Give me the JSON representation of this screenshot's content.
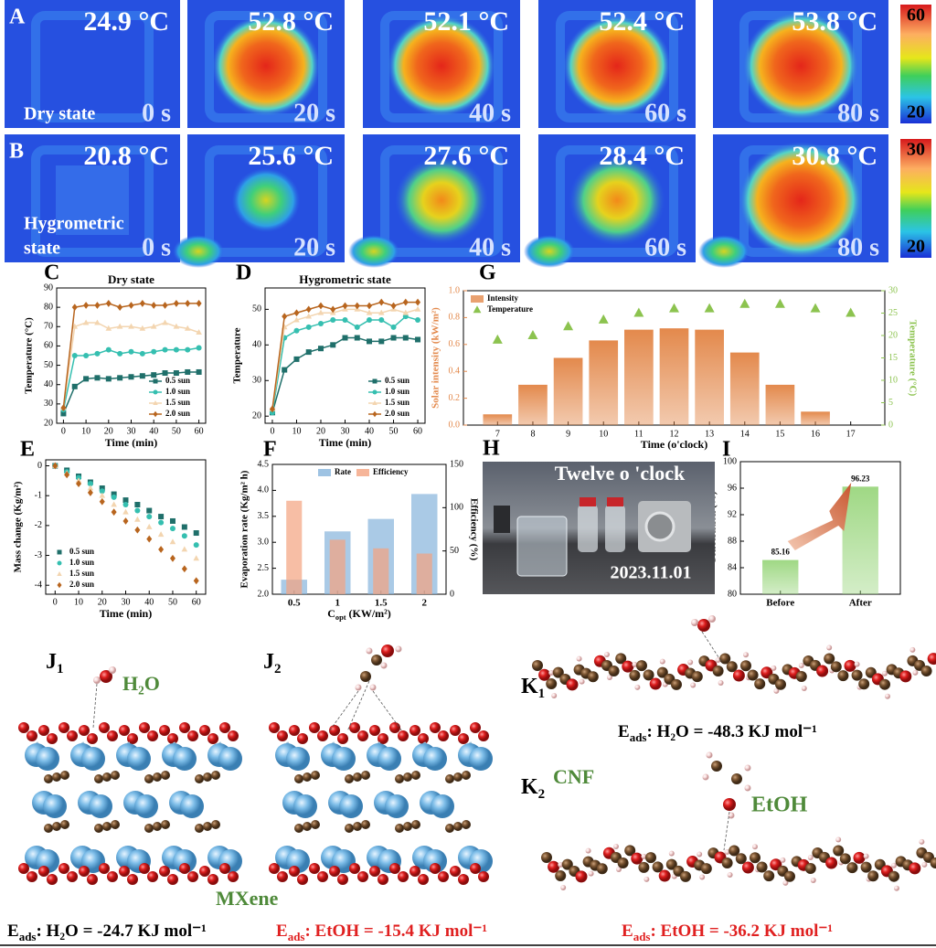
{
  "thermal": {
    "rows": [
      {
        "label": "A",
        "state": [
          "Dry state"
        ],
        "colorbar": [
          60,
          20
        ],
        "frames": [
          {
            "temperature": "24.9 °C",
            "time": "0 s"
          },
          {
            "temperature": "52.8 °C",
            "time": "20 s"
          },
          {
            "temperature": "52.1 °C",
            "time": "40 s"
          },
          {
            "temperature": "52.4 °C",
            "time": "60 s"
          },
          {
            "temperature": "53.8 °C",
            "time": "80 s"
          }
        ]
      },
      {
        "label": "B",
        "state": [
          "Hygrometric",
          "state"
        ],
        "colorbar": [
          30,
          20
        ],
        "frames": [
          {
            "temperature": "20.8 °C",
            "time": "0 s"
          },
          {
            "temperature": "25.6 °C",
            "time": "20 s"
          },
          {
            "temperature": "27.6 °C",
            "time": "40 s"
          },
          {
            "temperature": "28.4 °C",
            "time": "60 s"
          },
          {
            "temperature": "30.8 °C",
            "time": "80 s"
          }
        ]
      }
    ]
  },
  "chart_data": [
    {
      "type": "line",
      "label": "C",
      "title": "Dry state",
      "xlabel": "Time (min)",
      "ylabel": "Temperature (°C)",
      "x": [
        0,
        5,
        10,
        15,
        20,
        25,
        30,
        35,
        40,
        45,
        50,
        55,
        60
      ],
      "xlim": [
        -3,
        63
      ],
      "xticks": [
        0,
        10,
        20,
        30,
        40,
        50,
        60
      ],
      "ylim": [
        20,
        90
      ],
      "yticks": [
        20,
        30,
        40,
        50,
        60,
        70,
        80,
        90
      ],
      "legend": "lower right",
      "series": [
        {
          "name": "0.5 sun",
          "color": "#1f6f6a",
          "marker": "square",
          "values": [
            25,
            39,
            43,
            43.5,
            43,
            43.5,
            44,
            44.5,
            45,
            46,
            46,
            46.5,
            46.5
          ]
        },
        {
          "name": "1.0 sun",
          "color": "#35bfb0",
          "marker": "circle",
          "values": [
            27,
            55,
            55,
            56,
            58,
            56,
            57,
            56,
            57,
            58,
            58,
            58,
            59
          ]
        },
        {
          "name": "1.5 sun",
          "color": "#f3d5b0",
          "marker": "triangle",
          "values": [
            28,
            70,
            72,
            72,
            69,
            70,
            70,
            69,
            70,
            72,
            70,
            69,
            67
          ]
        },
        {
          "name": "2.0 sun",
          "color": "#b8651e",
          "marker": "diamond",
          "values": [
            28,
            80,
            81,
            81,
            82,
            80,
            81,
            82,
            81,
            81,
            82,
            82,
            82
          ]
        }
      ]
    },
    {
      "type": "line",
      "label": "D",
      "title": "Hygrometric state",
      "xlabel": "Time (min)",
      "ylabel": "Temperature",
      "x": [
        0,
        5,
        10,
        15,
        20,
        25,
        30,
        35,
        40,
        45,
        50,
        55,
        60
      ],
      "xlim": [
        -3,
        63
      ],
      "xticks": [
        0,
        10,
        20,
        30,
        40,
        50,
        60
      ],
      "ylim": [
        18,
        56
      ],
      "yticks": [
        20,
        30,
        40,
        50
      ],
      "legend": "lower right",
      "series": [
        {
          "name": "0.5 sun",
          "color": "#1f6f6a",
          "marker": "square",
          "values": [
            21,
            33,
            36,
            38,
            39,
            40,
            42,
            42,
            41,
            41,
            42,
            42,
            41.5
          ]
        },
        {
          "name": "1.0 sun",
          "color": "#35bfb0",
          "marker": "circle",
          "values": [
            21,
            42,
            44,
            45,
            46,
            47,
            47,
            45,
            47,
            47,
            45,
            48,
            47
          ]
        },
        {
          "name": "1.5 sun",
          "color": "#f3d5b0",
          "marker": "triangle",
          "values": [
            22,
            45,
            47,
            48,
            49,
            49,
            50,
            50,
            49,
            49,
            50,
            49,
            50
          ]
        },
        {
          "name": "2.0 sun",
          "color": "#b8651e",
          "marker": "diamond",
          "values": [
            22,
            48,
            49,
            50,
            51,
            50,
            51,
            51,
            51,
            52,
            51,
            52,
            52
          ]
        }
      ]
    },
    {
      "type": "bar",
      "label": "G",
      "xlabel": "Time (o'clock)",
      "ylabel": "Solar intensity (kW/m²)",
      "y2label": "Temperature (°C)",
      "categories": [
        "7",
        "8",
        "9",
        "10",
        "11",
        "12",
        "13",
        "14",
        "15",
        "16",
        "17"
      ],
      "ylim": [
        0,
        1
      ],
      "yticks": [
        {
          "value": 0,
          "label": "0.0"
        },
        0.2,
        0.4,
        0.6,
        0.8,
        {
          "value": 1,
          "label": "1.0"
        }
      ],
      "y2lim": [
        0,
        30
      ],
      "y2ticks": [
        0,
        5,
        10,
        15,
        20,
        25,
        30
      ],
      "legend": "upper left",
      "color_axes": true,
      "series": [
        {
          "name": "Intensity",
          "color": "#e3894c",
          "values": [
            0.08,
            0.3,
            0.5,
            0.63,
            0.71,
            0.72,
            0.71,
            0.54,
            0.3,
            0.1,
            null
          ]
        },
        {
          "name": "Temperature",
          "type": "scatter",
          "marker": "triangle",
          "axis": "y2",
          "color": "#8cc34f",
          "values": [
            19,
            20,
            22,
            23.5,
            25,
            26,
            26,
            27,
            27,
            26,
            25
          ]
        }
      ]
    },
    {
      "type": "scatter",
      "label": "E",
      "xlabel": "Time (min)",
      "ylabel": "Mass change (Kg/m²)",
      "x": [
        0,
        5,
        10,
        15,
        20,
        25,
        30,
        35,
        40,
        45,
        50,
        55,
        60
      ],
      "xlim": [
        -4,
        64
      ],
      "xticks": [
        0,
        10,
        20,
        30,
        40,
        50,
        60
      ],
      "ylim": [
        -4.3,
        0.2
      ],
      "yticks": [
        0,
        -1,
        -2,
        -3,
        -4
      ],
      "legend": "lower left",
      "series": [
        {
          "name": "0.5 sun",
          "color": "#1f6f6a",
          "marker": "square",
          "values": [
            0,
            -0.15,
            -0.35,
            -0.55,
            -0.75,
            -0.95,
            -1.15,
            -1.3,
            -1.5,
            -1.7,
            -1.85,
            -2.05,
            -2.25
          ]
        },
        {
          "name": "1.0 sun",
          "color": "#35bfb0",
          "marker": "circle",
          "values": [
            0,
            -0.2,
            -0.4,
            -0.6,
            -0.85,
            -1.05,
            -1.3,
            -1.5,
            -1.7,
            -1.9,
            -2.1,
            -2.35,
            -2.65
          ]
        },
        {
          "name": "1.5 sun",
          "color": "#f3d5b0",
          "marker": "triangle",
          "values": [
            0,
            -0.25,
            -0.5,
            -0.75,
            -1,
            -1.3,
            -1.55,
            -1.8,
            -2.05,
            -2.3,
            -2.55,
            -2.8,
            -3.1
          ]
        },
        {
          "name": "2.0 sun",
          "color": "#b8651e",
          "marker": "diamond",
          "values": [
            0,
            -0.3,
            -0.6,
            -0.9,
            -1.2,
            -1.55,
            -1.85,
            -2.15,
            -2.45,
            -2.8,
            -3.1,
            -3.45,
            -3.85
          ]
        }
      ]
    },
    {
      "type": "bar",
      "label": "F",
      "xlabel": {
        "symbol": "C",
        "subscript": "opt",
        "text": " (KW/m²)"
      },
      "ylabel": "Evaporation rate (Kg/m² h)",
      "y2label": "Efficiency (%)",
      "categories": [
        "0.5",
        "1",
        "1.5",
        "2"
      ],
      "ylim": [
        2,
        4.5
      ],
      "yticks": [
        {
          "value": 2,
          "label": "2.0"
        },
        2.5,
        {
          "value": 3,
          "label": "3.0"
        },
        3.5,
        {
          "value": 4,
          "label": "4.0"
        },
        4.5
      ],
      "y2lim": [
        0,
        150
      ],
      "y2ticks": [
        0,
        50,
        100,
        150
      ],
      "legend": "upper center",
      "series": [
        {
          "name": "Rate",
          "color": "#86b4dc",
          "values": [
            2.28,
            3.21,
            3.45,
            3.93
          ]
        },
        {
          "name": "Efficiency",
          "color": "#f4a27f",
          "axis": "y2",
          "values": [
            108,
            63,
            53,
            47
          ]
        }
      ]
    },
    {
      "type": "bar",
      "label": "I",
      "ylabel": "Concerntion (%)",
      "categories": [
        "Before",
        "After"
      ],
      "values": [
        85.16,
        96.23
      ],
      "color": "#9fd884",
      "ylim": [
        80,
        100
      ],
      "yticks": [
        80,
        84,
        88,
        92,
        96,
        100
      ],
      "data_labels": true
    }
  ],
  "photo": {
    "label": "H",
    "caption": "Twelve o 'clock",
    "date": "2023.11.01"
  },
  "structures": {
    "J1": {
      "letter": "J",
      "sub": "1",
      "adsorbate": "H₂O",
      "substrate": "MXene",
      "energy": {
        "symbol": "E",
        "subscript": "ads",
        "text": ": H₂O = -24.7 KJ mol⁻¹",
        "color": "#000000"
      }
    },
    "J2": {
      "letter": "J",
      "sub": "2",
      "energy": {
        "symbol": "E",
        "subscript": "ads",
        "text": ": EtOH = -15.4 KJ mol⁻¹",
        "color": "#e02020"
      }
    },
    "K1": {
      "letter": "K",
      "sub": "1",
      "energy": {
        "symbol": "E",
        "subscript": "ads",
        "text": ": H₂O = -48.3 KJ mol⁻¹",
        "color": "#000000"
      }
    },
    "K2": {
      "letter": "K",
      "sub": "2",
      "substrate": "CNF",
      "adsorbate": "EtOH",
      "energy": {
        "symbol": "E",
        "subscript": "ads",
        "text": ": EtOH = -36.2 KJ mol⁻¹",
        "color": "#e02020"
      }
    }
  }
}
